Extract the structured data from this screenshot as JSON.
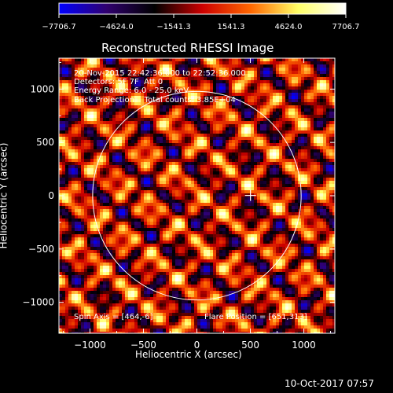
{
  "chart_data": {
    "type": "heatmap",
    "title": "Reconstructed RHESSI Image",
    "xlabel": "Heliocentric X (arcsec)",
    "ylabel": "Heliocentric Y (arcsec)",
    "xlim": [
      -1290,
      1290
    ],
    "ylim": [
      -1290,
      1290
    ],
    "x_ticks": [
      -1000,
      -500,
      0,
      500,
      1000
    ],
    "x_tick_labels": [
      "−1000",
      "−500",
      "0",
      "500",
      "1000"
    ],
    "y_ticks": [
      -1000,
      -500,
      0,
      500,
      1000
    ],
    "y_tick_labels": [
      "−1000",
      "−500",
      "0",
      "500",
      "1000"
    ],
    "colorbar": {
      "min": -7706.7,
      "max": 7706.7,
      "tick_values": [
        -7706.7,
        -4624.0,
        -1541.3,
        1541.3,
        4624.0,
        7706.7
      ],
      "tick_labels": [
        "−7706.7",
        "−4624.0",
        "−1541.3",
        "1541.3",
        "4624.0",
        "7706.7"
      ],
      "colormap_stops": [
        "#0000ff",
        "#30006e",
        "#000000",
        "#cc0000",
        "#ff6600",
        "#ffff66",
        "#ffffff"
      ]
    },
    "solar_limb_radius_arcsec": 975,
    "flare_position": [
      651,
      313
    ],
    "annotations": {
      "time_range": "20-Nov-2015 22:42:36.000 to 22:52:36.000",
      "detectors": "Detectors: 5F 7F  Att 0",
      "energy_range": "Energy Range: 6.0 - 25.0 keV",
      "method": "Back Projection    Total counts: 3.85E+04",
      "spin_axis": "Spin Axis = [464,-6]",
      "flare_position_label": "Flare Position = [651,313]"
    },
    "timestamp": "10-Oct-2017 07:57"
  }
}
